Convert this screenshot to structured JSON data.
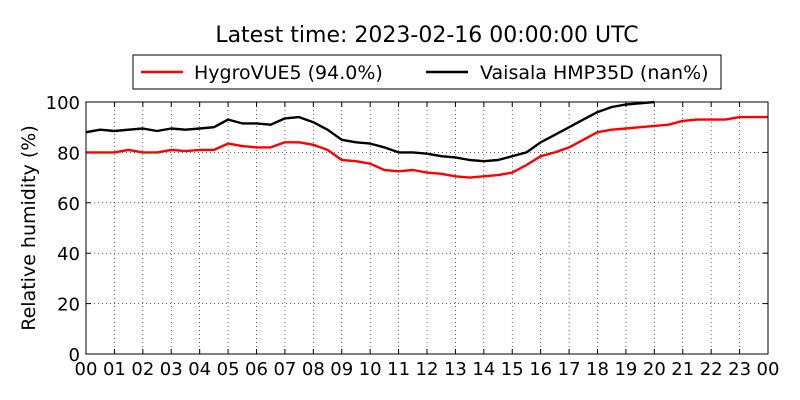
{
  "chart_data": {
    "type": "line",
    "title": "Latest time: 2023-02-16 00:00:00 UTC",
    "xlabel": "",
    "ylabel": "Relative humidity (%)",
    "xlim": [
      0,
      24
    ],
    "ylim": [
      0,
      100
    ],
    "grid": true,
    "legend_position": "top",
    "x_ticks": [
      "00",
      "01",
      "02",
      "03",
      "04",
      "05",
      "06",
      "07",
      "08",
      "09",
      "10",
      "11",
      "12",
      "13",
      "14",
      "15",
      "16",
      "17",
      "18",
      "19",
      "20",
      "21",
      "22",
      "23",
      "00"
    ],
    "y_ticks": [
      "0",
      "20",
      "40",
      "60",
      "80",
      "100"
    ],
    "series": [
      {
        "name": "HygroVUE5 (94.0%)",
        "color": "#ff0000",
        "x": [
          0,
          0.5,
          1,
          1.5,
          2,
          2.5,
          3,
          3.5,
          4,
          4.5,
          5,
          5.5,
          6,
          6.5,
          7,
          7.5,
          8,
          8.5,
          9,
          9.5,
          10,
          10.5,
          11,
          11.5,
          12,
          12.5,
          13,
          13.5,
          14,
          14.5,
          15,
          15.5,
          16,
          16.5,
          17,
          17.5,
          18,
          18.5,
          19,
          19.5,
          20,
          20.5,
          21,
          21.5,
          22,
          22.5,
          23,
          23.5,
          24
        ],
        "y": [
          80,
          80,
          80,
          81,
          80,
          80,
          81,
          80.5,
          81,
          81,
          83.5,
          82.5,
          82,
          82,
          84,
          84,
          83,
          81,
          77,
          76.5,
          75.5,
          73,
          72.5,
          73,
          72,
          71.5,
          70.5,
          70,
          70.5,
          71,
          72,
          75,
          78.5,
          80,
          82,
          85,
          88,
          89,
          89.5,
          90,
          90.5,
          91,
          92.5,
          93,
          93,
          93,
          94,
          94,
          94
        ]
      },
      {
        "name": "Vaisala HMP35D (nan%)",
        "color": "#000000",
        "x": [
          0,
          0.5,
          1,
          1.5,
          2,
          2.5,
          3,
          3.5,
          4,
          4.5,
          5,
          5.5,
          6,
          6.5,
          7,
          7.5,
          8,
          8.5,
          9,
          9.5,
          10,
          10.5,
          11,
          11.5,
          12,
          12.5,
          13,
          13.5,
          14,
          14.5,
          15,
          15.5,
          16,
          16.5,
          17,
          17.5,
          18,
          18.5,
          19,
          19.5,
          20
        ],
        "y": [
          88,
          89,
          88.5,
          89,
          89.5,
          88.5,
          89.5,
          89,
          89.5,
          90,
          93,
          91.5,
          91.5,
          91,
          93.5,
          94,
          92,
          89,
          85,
          84,
          83.5,
          82,
          80,
          80,
          79.5,
          78.5,
          78,
          77,
          76.5,
          77,
          78.5,
          80,
          84,
          87,
          90,
          93,
          96,
          98,
          99,
          99.5,
          100
        ]
      }
    ]
  }
}
